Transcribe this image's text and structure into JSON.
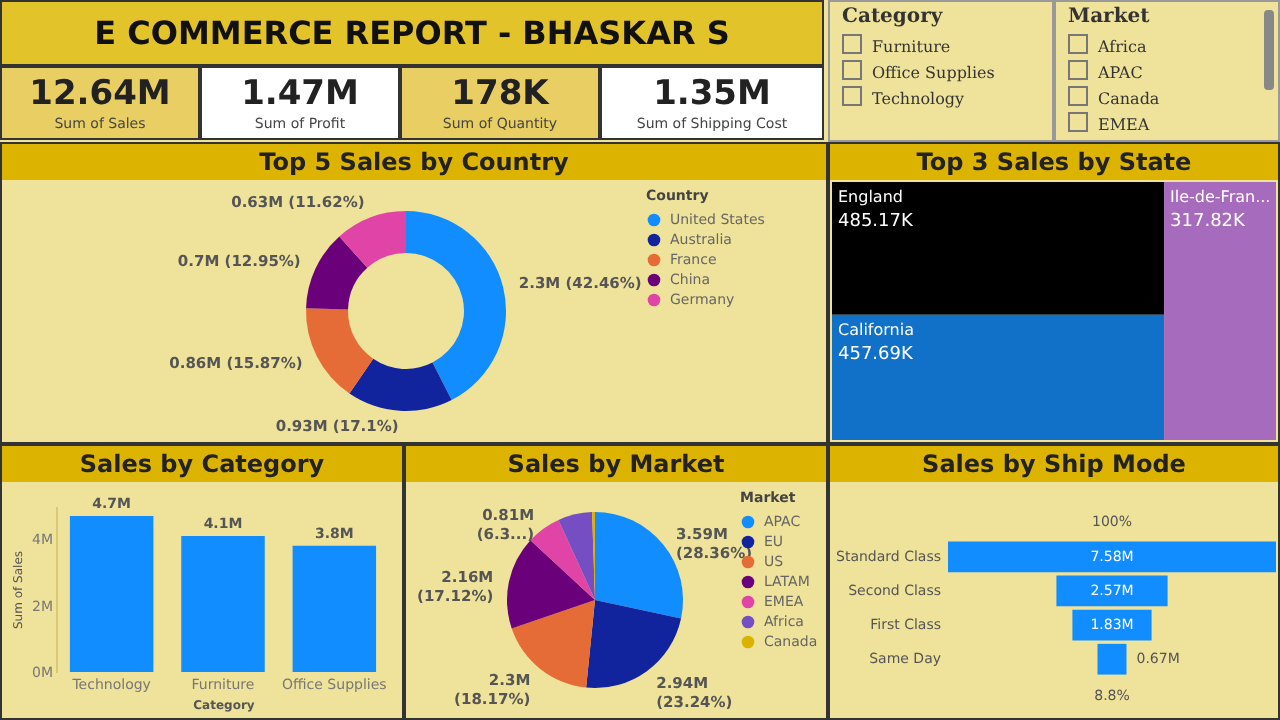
{
  "chart_data": [
    {
      "type": "other",
      "title": "E COMMERCE REPORT - BHASKAR S",
      "annotations": [
        "12.64M",
        "Sum of Sales",
        "1.47M",
        "Sum of Profit",
        "178K",
        "Sum of Quantity",
        "1.35M",
        "Sum of Shipping Cost"
      ]
    },
    {
      "type": "other",
      "title": "Category",
      "categories": [
        "Furniture",
        "Office Supplies",
        "Technology"
      ]
    },
    {
      "type": "other",
      "title": "Market",
      "categories": [
        "Africa",
        "APAC",
        "Canada",
        "EMEA"
      ]
    },
    {
      "type": "donut",
      "title": "Top 5 Sales by Country",
      "categories": [
        "United States",
        "Australia",
        "France",
        "China",
        "Germany"
      ],
      "values": [
        42.46,
        17.1,
        15.87,
        12.95,
        11.62
      ],
      "value_labels": [
        "2.3M (42.46%)",
        "0.93M (17.1%)",
        "0.86M (15.87%)",
        "0.7M (12.95%)",
        "0.63M (11.62%)"
      ],
      "colors": [
        "#118dff",
        "#12239e",
        "#e66c37",
        "#6b007b",
        "#e044a7"
      ],
      "legend_title": "Country",
      "legend": "right"
    },
    {
      "type": "other",
      "title": "Top 3 Sales by State",
      "categories": [
        "England",
        "California",
        "Ile-de-Fran..."
      ],
      "values": [
        485.17,
        457.69,
        317.82
      ],
      "value_labels": [
        "485.17K",
        "457.69K",
        "317.82K"
      ],
      "colors": [
        "#000000",
        "#1170c8",
        "#a66bbc"
      ]
    },
    {
      "type": "bar",
      "title": "Sales by Category",
      "categories": [
        "Technology",
        "Furniture",
        "Office Supplies"
      ],
      "values": [
        4.7,
        4.1,
        3.8
      ],
      "value_labels": [
        "4.7M",
        "4.1M",
        "3.8M"
      ],
      "color": "#118dff",
      "xlabel": "Category",
      "ylabel": "Sum of Sales",
      "ylim": [
        0,
        5
      ],
      "yticks": [
        {
          "value": 0,
          "label": "0M"
        },
        {
          "value": 2,
          "label": "2M"
        },
        {
          "value": 4,
          "label": "4M"
        }
      ]
    },
    {
      "type": "pie",
      "title": "Sales by Market",
      "categories": [
        "APAC",
        "EU",
        "US",
        "LATAM",
        "EMEA",
        "Africa",
        "Canada"
      ],
      "values": [
        28.36,
        23.24,
        18.17,
        17.12,
        6.3,
        6.28,
        0.53
      ],
      "value_labels": [
        "3.59M (28.36%)",
        "2.94M (23.24%)",
        "2.3M (18.17%)",
        "2.16M (17.12%)",
        "0.81M (6.3...)",
        null,
        null
      ],
      "colors": [
        "#118dff",
        "#12239e",
        "#e66c37",
        "#6b007b",
        "#e044a7",
        "#744ec2",
        "#d9b300"
      ],
      "legend_title": "Market",
      "legend": "right"
    },
    {
      "type": "other",
      "title": "Sales by Ship Mode",
      "categories": [
        "Standard Class",
        "Second Class",
        "First Class",
        "Same Day"
      ],
      "values": [
        7.58,
        2.57,
        1.83,
        0.67
      ],
      "value_labels": [
        "7.58M",
        "2.57M",
        "1.83M",
        "0.67M"
      ],
      "color": "#118dff",
      "annotations": [
        "100%",
        "8.8%"
      ]
    }
  ]
}
